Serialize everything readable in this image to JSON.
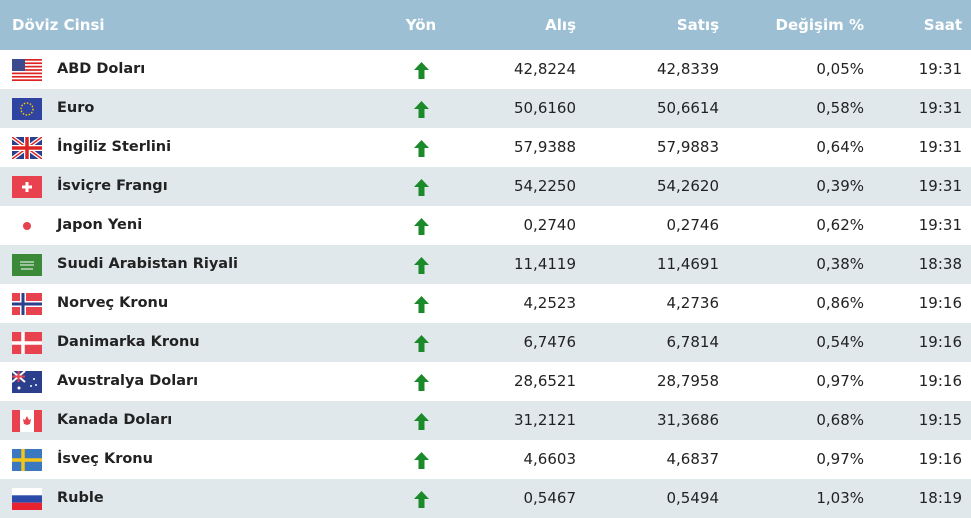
{
  "headers": {
    "name": "Döviz Cinsi",
    "direction": "Yön",
    "buy": "Alış",
    "sell": "Satış",
    "change": "Değişim %",
    "time": "Saat"
  },
  "colors": {
    "header_bg": "#9dbfd3",
    "row_alt": "#e1e8ec",
    "up_arrow": "#1a8a2a"
  },
  "rows": [
    {
      "flag": "us",
      "name": "ABD Doları",
      "direction": "up",
      "buy": "42,8224",
      "sell": "42,8339",
      "change": "0,05%",
      "time": "19:31"
    },
    {
      "flag": "eu",
      "name": "Euro",
      "direction": "up",
      "buy": "50,6160",
      "sell": "50,6614",
      "change": "0,58%",
      "time": "19:31"
    },
    {
      "flag": "gb",
      "name": "İngiliz Sterlini",
      "direction": "up",
      "buy": "57,9388",
      "sell": "57,9883",
      "change": "0,64%",
      "time": "19:31"
    },
    {
      "flag": "ch",
      "name": "İsviçre Frangı",
      "direction": "up",
      "buy": "54,2250",
      "sell": "54,2620",
      "change": "0,39%",
      "time": "19:31"
    },
    {
      "flag": "jp",
      "name": "Japon Yeni",
      "direction": "up",
      "buy": "0,2740",
      "sell": "0,2746",
      "change": "0,62%",
      "time": "19:31"
    },
    {
      "flag": "sa",
      "name": "Suudi Arabistan Riyali",
      "direction": "up",
      "buy": "11,4119",
      "sell": "11,4691",
      "change": "0,38%",
      "time": "18:38"
    },
    {
      "flag": "no",
      "name": "Norveç Kronu",
      "direction": "up",
      "buy": "4,2523",
      "sell": "4,2736",
      "change": "0,86%",
      "time": "19:16"
    },
    {
      "flag": "dk",
      "name": "Danimarka Kronu",
      "direction": "up",
      "buy": "6,7476",
      "sell": "6,7814",
      "change": "0,54%",
      "time": "19:16"
    },
    {
      "flag": "au",
      "name": "Avustralya Doları",
      "direction": "up",
      "buy": "28,6521",
      "sell": "28,7958",
      "change": "0,97%",
      "time": "19:16"
    },
    {
      "flag": "ca",
      "name": "Kanada Doları",
      "direction": "up",
      "buy": "31,2121",
      "sell": "31,3686",
      "change": "0,68%",
      "time": "19:15"
    },
    {
      "flag": "se",
      "name": "İsveç Kronu",
      "direction": "up",
      "buy": "4,6603",
      "sell": "4,6837",
      "change": "0,97%",
      "time": "19:16"
    },
    {
      "flag": "ru",
      "name": "Ruble",
      "direction": "up",
      "buy": "0,5467",
      "sell": "0,5494",
      "change": "1,03%",
      "time": "18:19"
    }
  ]
}
